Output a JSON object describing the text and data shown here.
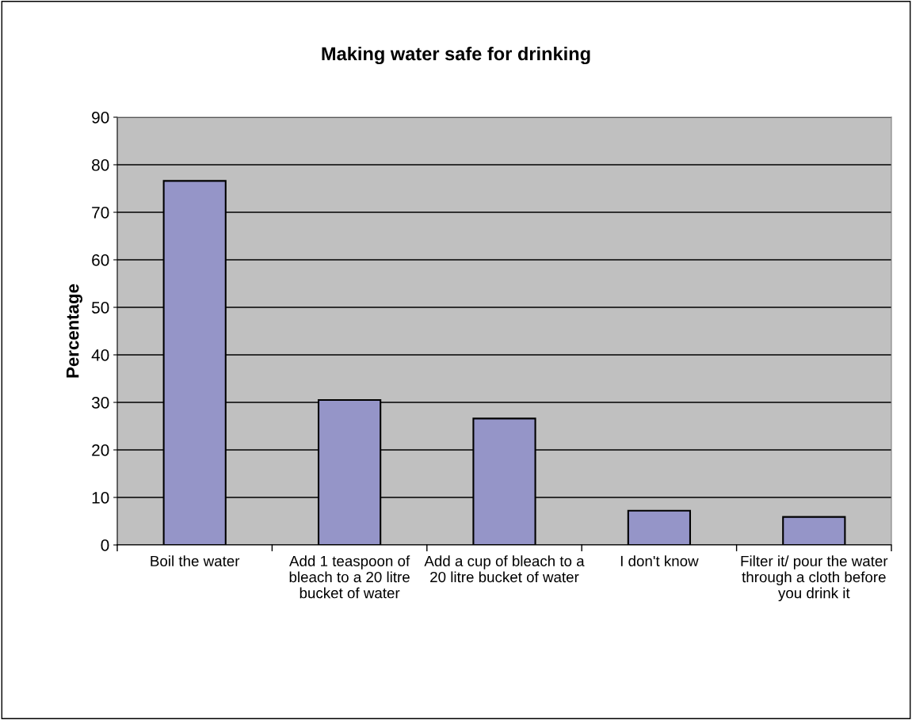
{
  "chart_data": {
    "type": "bar",
    "title": "Making water safe for drinking",
    "ylabel": "Percentage",
    "categories": [
      "Boil the water",
      "Add 1 teaspoon of bleach to a 20 litre bucket of water",
      "Add a cup of bleach to a 20 litre bucket of water",
      "I don't know",
      "Filter it/ pour the water through a cloth before you drink it"
    ],
    "values": [
      76.6,
      30.5,
      26.6,
      7.2,
      5.9
    ],
    "color": "#9595c8",
    "ylim": [
      0,
      90
    ],
    "yticks": [
      0,
      10,
      20,
      30,
      40,
      50,
      60,
      70,
      80,
      90
    ],
    "grid": "y",
    "legend": false
  }
}
